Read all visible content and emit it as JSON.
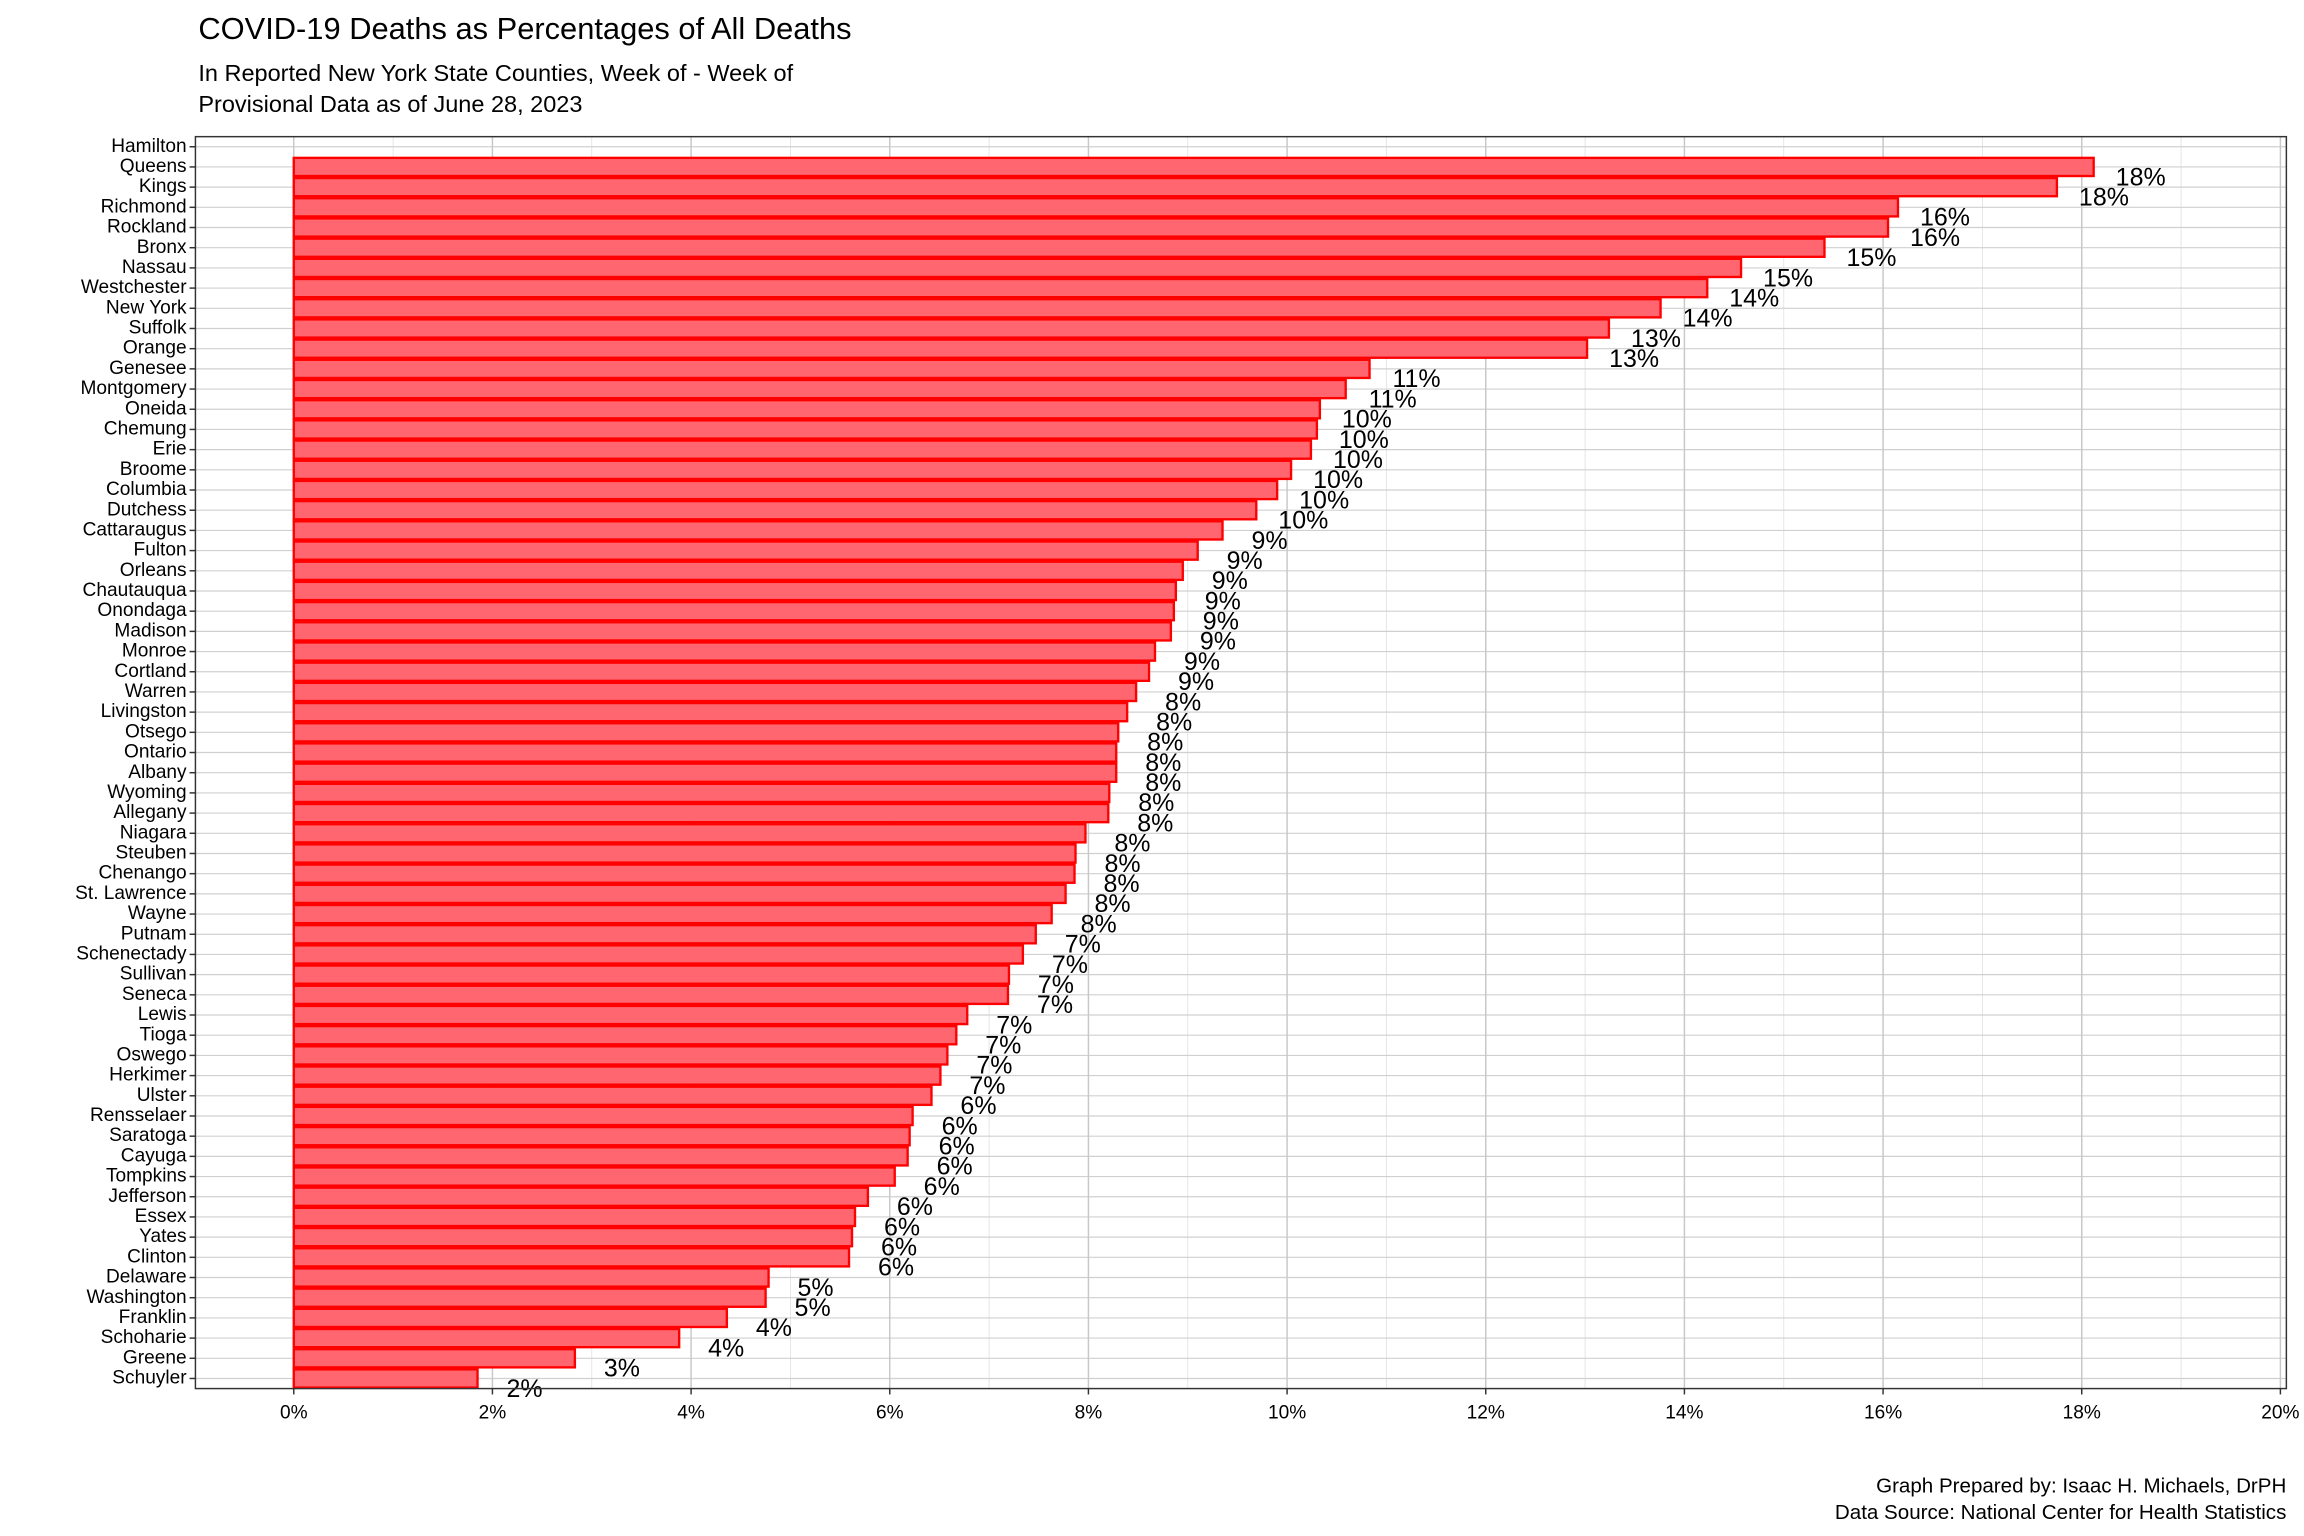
{
  "chart_data": {
    "type": "barh",
    "title": "COVID-19 Deaths as Percentages of All Deaths",
    "subtitle": [
      "In Reported New York State Counties, Week of  - Week of",
      "Provisional Data as of June 28, 2023"
    ],
    "caption": [
      "Graph Prepared by: Isaac H. Michaels, DrPH",
      "Data Source: National Center for Health Statistics"
    ],
    "categories": [
      "Hamilton",
      "Queens",
      "Kings",
      "Richmond",
      "Rockland",
      "Bronx",
      "Nassau",
      "Westchester",
      "New York",
      "Suffolk",
      "Orange",
      "Genesee",
      "Montgomery",
      "Oneida",
      "Chemung",
      "Erie",
      "Broome",
      "Columbia",
      "Dutchess",
      "Cattaraugus",
      "Fulton",
      "Orleans",
      "Chautauqua",
      "Onondaga",
      "Madison",
      "Monroe",
      "Cortland",
      "Warren",
      "Livingston",
      "Otsego",
      "Ontario",
      "Albany",
      "Wyoming",
      "Allegany",
      "Niagara",
      "Steuben",
      "Chenango",
      "St. Lawrence",
      "Wayne",
      "Putnam",
      "Schenectady",
      "Sullivan",
      "Seneca",
      "Lewis",
      "Tioga",
      "Oswego",
      "Herkimer",
      "Ulster",
      "Rensselaer",
      "Saratoga",
      "Cayuga",
      "Tompkins",
      "Jefferson",
      "Essex",
      "Yates",
      "Clinton",
      "Delaware",
      "Washington",
      "Franklin",
      "Schoharie",
      "Greene",
      "Schuyler"
    ],
    "values": [
      null,
      18.12,
      17.75,
      16.15,
      16.05,
      15.41,
      14.57,
      14.23,
      13.76,
      13.24,
      13.02,
      10.83,
      10.59,
      10.33,
      10.3,
      10.24,
      10.04,
      9.9,
      9.69,
      9.35,
      9.1,
      8.95,
      8.88,
      8.86,
      8.83,
      8.67,
      8.61,
      8.48,
      8.39,
      8.3,
      8.28,
      8.28,
      8.21,
      8.2,
      7.97,
      7.87,
      7.86,
      7.77,
      7.63,
      7.47,
      7.34,
      7.2,
      7.19,
      6.78,
      6.67,
      6.58,
      6.51,
      6.42,
      6.23,
      6.2,
      6.18,
      6.05,
      5.78,
      5.65,
      5.62,
      5.59,
      4.78,
      4.75,
      4.36,
      3.88,
      2.83,
      1.85
    ],
    "value_labels": [
      null,
      "18%",
      "18%",
      "16%",
      "16%",
      "15%",
      "15%",
      "14%",
      "14%",
      "13%",
      "13%",
      "11%",
      "11%",
      "10%",
      "10%",
      "10%",
      "10%",
      "10%",
      "10%",
      "9%",
      "9%",
      "9%",
      "9%",
      "9%",
      "9%",
      "9%",
      "9%",
      "8%",
      "8%",
      "8%",
      "8%",
      "8%",
      "8%",
      "8%",
      "8%",
      "8%",
      "8%",
      "8%",
      "8%",
      "7%",
      "7%",
      "7%",
      "7%",
      "7%",
      "7%",
      "7%",
      "7%",
      "6%",
      "6%",
      "6%",
      "6%",
      "6%",
      "6%",
      "6%",
      "6%",
      "6%",
      "5%",
      "5%",
      "4%",
      "4%",
      "3%",
      "2%"
    ],
    "color": "#ff6670",
    "edge_color": "#ff0000",
    "xlim": [
      -0.99,
      20.06
    ],
    "xticks": [
      {
        "value": 0,
        "label": "0%"
      },
      {
        "value": 2,
        "label": "2%"
      },
      {
        "value": 4,
        "label": "4%"
      },
      {
        "value": 6,
        "label": "6%"
      },
      {
        "value": 8,
        "label": "8%"
      },
      {
        "value": 10,
        "label": "10%"
      },
      {
        "value": 12,
        "label": "12%"
      },
      {
        "value": 14,
        "label": "14%"
      },
      {
        "value": 16,
        "label": "16%"
      },
      {
        "value": 18,
        "label": "18%"
      },
      {
        "value": 20,
        "label": "20%"
      }
    ],
    "grid": true
  }
}
